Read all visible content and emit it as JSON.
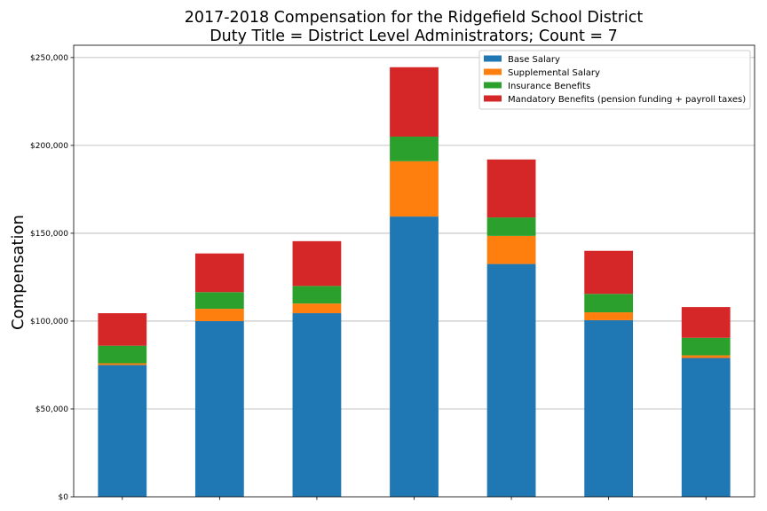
{
  "chart_data": {
    "type": "bar",
    "stacked": true,
    "title_lines": [
      "2017-2018 Compensation for the Ridgefield School District",
      "Duty Title = District Level Administrators; Count = 7"
    ],
    "xlabel": "",
    "ylabel": "Compensation",
    "ylim": [
      0,
      257000
    ],
    "yticks": [
      0,
      50000,
      100000,
      150000,
      200000,
      250000
    ],
    "ytick_labels": [
      "$0",
      "$50,000",
      "$100,000",
      "$150,000",
      "$200,000",
      "$250,000"
    ],
    "grid": "horizontal",
    "legend_position": "top-right",
    "categories": [
      "",
      "",
      "",
      "",
      "",
      "",
      ""
    ],
    "series": [
      {
        "name": "Base Salary",
        "color": "#1f77b4",
        "values": [
          75000,
          100000,
          104500,
          159500,
          132500,
          100500,
          79000
        ]
      },
      {
        "name": "Supplemental Salary",
        "color": "#ff7f0e",
        "values": [
          1000,
          7000,
          5500,
          31500,
          16000,
          4500,
          1500
        ]
      },
      {
        "name": "Insurance Benefits",
        "color": "#2ca02c",
        "values": [
          10000,
          9500,
          10000,
          14000,
          10500,
          10500,
          10000
        ]
      },
      {
        "name": "Mandatory Benefits (pension funding + payroll taxes)",
        "color": "#d62728",
        "values": [
          18500,
          22000,
          25500,
          39500,
          33000,
          24500,
          17500
        ]
      }
    ]
  }
}
